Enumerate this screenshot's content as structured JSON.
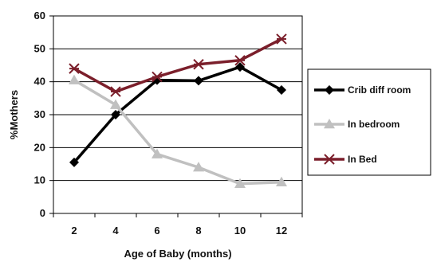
{
  "chart_data": {
    "type": "line",
    "title": "",
    "xlabel": "Age of Baby (months)",
    "ylabel": "%Mothers",
    "x": [
      2,
      4,
      6,
      8,
      10,
      12
    ],
    "ylim": [
      0,
      60
    ],
    "yticks": [
      0,
      10,
      20,
      30,
      40,
      50,
      60
    ],
    "grid": true,
    "legend_position": "right",
    "series": [
      {
        "name": "Crib diff room",
        "values": [
          15.5,
          30,
          40.5,
          40.3,
          44.5,
          37.5
        ],
        "color": "#000000",
        "marker": "diamond"
      },
      {
        "name": "In bedroom",
        "values": [
          40.5,
          33,
          18,
          14,
          9,
          9.5
        ],
        "color": "#c0c0c0",
        "marker": "triangle"
      },
      {
        "name": "In Bed",
        "values": [
          44,
          37,
          41.5,
          45.3,
          46.5,
          53
        ],
        "color": "#7b1f2b",
        "marker": "star"
      }
    ]
  }
}
